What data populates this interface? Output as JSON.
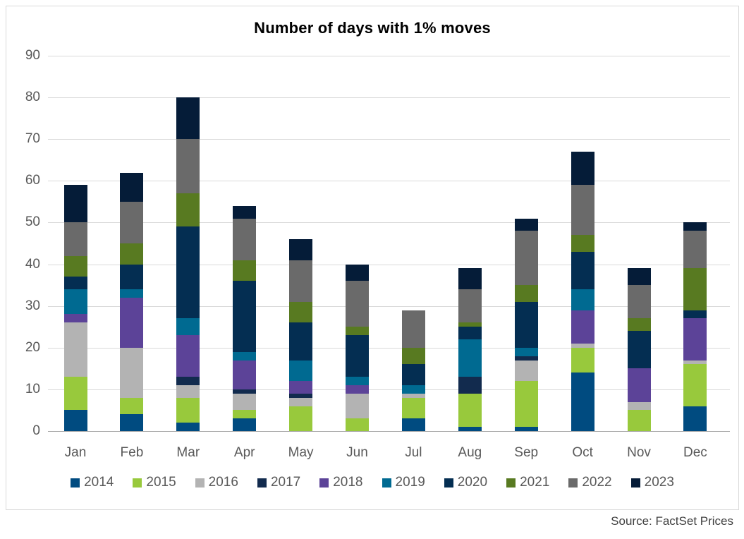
{
  "title": "Number of days with 1% moves",
  "source": "Source: FactSet Prices",
  "chart_data": {
    "type": "bar",
    "variant": "stacked",
    "title": "Number of days with 1% moves",
    "xlabel": "",
    "ylabel": "",
    "ylim": [
      0,
      90
    ],
    "ytick_step": 10,
    "ytick_labels": [
      "0",
      "10",
      "20",
      "30",
      "40",
      "50",
      "60",
      "70",
      "80",
      "90"
    ],
    "grid": true,
    "legend_position": "bottom",
    "categories": [
      "Jan",
      "Feb",
      "Mar",
      "Apr",
      "May",
      "Jun",
      "Jul",
      "Aug",
      "Sep",
      "Oct",
      "Nov",
      "Dec"
    ],
    "series": [
      {
        "name": "2014",
        "color": "#004B80",
        "values": [
          5,
          4,
          2,
          3,
          0,
          0,
          3,
          1,
          1,
          14,
          0,
          6
        ]
      },
      {
        "name": "2015",
        "color": "#98C93C",
        "values": [
          8,
          4,
          6,
          2,
          6,
          3,
          5,
          8,
          11,
          6,
          5,
          10
        ]
      },
      {
        "name": "2016",
        "color": "#B3B3B3",
        "values": [
          13,
          12,
          3,
          4,
          2,
          6,
          1,
          0,
          5,
          1,
          2,
          1
        ]
      },
      {
        "name": "2017",
        "color": "#122B4E",
        "values": [
          0,
          0,
          2,
          1,
          1,
          0,
          0,
          4,
          1,
          0,
          0,
          0
        ]
      },
      {
        "name": "2018",
        "color": "#5C4398",
        "values": [
          2,
          12,
          10,
          7,
          3,
          2,
          0,
          0,
          0,
          8,
          8,
          10
        ]
      },
      {
        "name": "2019",
        "color": "#006A91",
        "values": [
          6,
          2,
          4,
          2,
          5,
          2,
          2,
          9,
          2,
          5,
          0,
          0
        ]
      },
      {
        "name": "2020",
        "color": "#042E52",
        "values": [
          3,
          6,
          22,
          17,
          9,
          10,
          5,
          3,
          11,
          9,
          9,
          2
        ]
      },
      {
        "name": "2021",
        "color": "#587A21",
        "values": [
          5,
          5,
          8,
          5,
          5,
          2,
          4,
          1,
          4,
          4,
          3,
          10
        ]
      },
      {
        "name": "2022",
        "color": "#6A6A6A",
        "values": [
          8,
          10,
          13,
          10,
          10,
          11,
          9,
          8,
          13,
          12,
          8,
          9
        ]
      },
      {
        "name": "2023",
        "color": "#051C38",
        "values": [
          9,
          7,
          10,
          3,
          5,
          4,
          0,
          5,
          3,
          8,
          4,
          2
        ]
      }
    ],
    "monthly_totals": [
      59,
      62,
      80,
      54,
      46,
      40,
      29,
      39,
      51,
      67,
      39,
      50
    ]
  }
}
